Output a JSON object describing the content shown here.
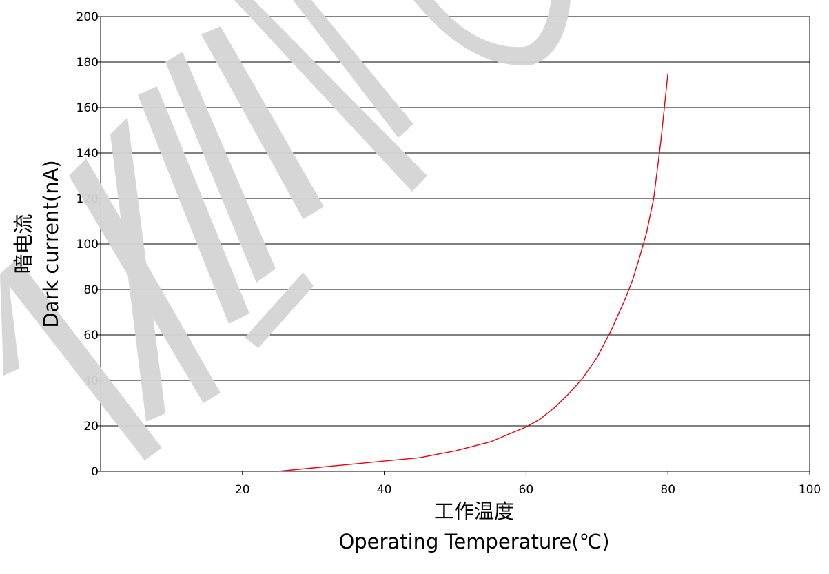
{
  "watermark": {
    "text": "NEW",
    "color": "#d4d4d4"
  },
  "colors": {
    "curve": "#e8000d",
    "grid": "#000000",
    "background": "#ffffff"
  },
  "chart_data": {
    "type": "line",
    "title": "",
    "xlabel_cn": "工作温度",
    "xlabel": "Operating Temperature(℃)",
    "ylabel_cn": "暗电流",
    "ylabel": "Dark current(nA)",
    "xlim": [
      0,
      100
    ],
    "ylim": [
      0,
      200
    ],
    "x_ticks": [
      20,
      40,
      60,
      80,
      100
    ],
    "x_tick_labels": [
      "20",
      "40",
      "60",
      "80",
      "100"
    ],
    "y_ticks": [
      0,
      20,
      40,
      60,
      80,
      100,
      120,
      140,
      160,
      180,
      200
    ],
    "y_tick_labels": [
      "0",
      "20",
      "40",
      "60",
      "80",
      "100",
      "120",
      "140",
      "160",
      "180",
      "200"
    ],
    "grid": "horizontal",
    "series": [
      {
        "x": [
          25,
          30,
          35,
          40,
          45,
          50,
          55,
          60,
          62,
          64,
          66,
          68,
          70,
          72,
          74,
          75,
          76,
          77,
          78,
          79,
          79.5,
          80
        ],
        "y": [
          0,
          1.5,
          3,
          4.5,
          6,
          9,
          13,
          19.5,
          23,
          28,
          34,
          41,
          50,
          62,
          76,
          84,
          94,
          105,
          120,
          145,
          160,
          175
        ]
      }
    ]
  }
}
